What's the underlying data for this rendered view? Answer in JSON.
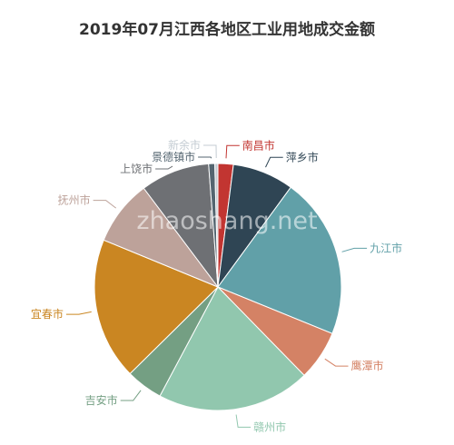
{
  "chart_data": {
    "type": "pie",
    "title": "2019年07月江西各地区工业用地成交金额",
    "watermark": "zhaoshang.net",
    "slices": [
      {
        "label": "南昌市",
        "value": 2.0,
        "color": "#c23531"
      },
      {
        "label": "萍乡市",
        "value": 8.0,
        "color": "#2f4554"
      },
      {
        "label": "九江市",
        "value": 21.0,
        "color": "#61a0a8"
      },
      {
        "label": "鹰潭市",
        "value": 6.5,
        "color": "#d48265"
      },
      {
        "label": "赣州市",
        "value": 20.0,
        "color": "#91c7ae"
      },
      {
        "label": "吉安市",
        "value": 4.8,
        "color": "#749f83"
      },
      {
        "label": "宜春市",
        "value": 18.5,
        "color": "#ca8622"
      },
      {
        "label": "抚州市",
        "value": 8.5,
        "color": "#bda29a"
      },
      {
        "label": "上饶市",
        "value": 9.0,
        "color": "#6e7074"
      },
      {
        "label": "景德镇市",
        "value": 0.8,
        "color": "#546570"
      },
      {
        "label": "新余市",
        "value": 0.4,
        "color": "#c4ccd3"
      }
    ],
    "legend": "none"
  }
}
